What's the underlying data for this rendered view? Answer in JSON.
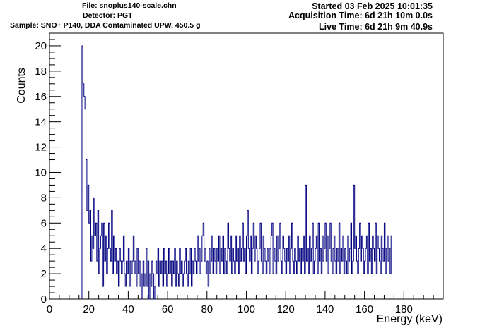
{
  "header": {
    "file": "File: snoplus140-scale.chn",
    "detector": "Detector: PGT",
    "sample": "Sample: SNO+ P140, DDA Contaminated UPW, 450.5 g",
    "started": "Started 03 Feb 2025 10:01:35",
    "acquisition_time": "Acquisition Time: 6d 21h 10m 0.0s",
    "live_time": "Live Time: 6d 21h 9m 40.9s"
  },
  "chart_data": {
    "type": "histogram",
    "xlabel": "Energy (keV)",
    "ylabel": "Counts",
    "xlim": [
      0,
      200
    ],
    "ylim": [
      0,
      21
    ],
    "x_ticks": [
      0,
      20,
      40,
      60,
      80,
      100,
      120,
      140,
      160,
      180
    ],
    "y_ticks": [
      0,
      2,
      4,
      6,
      8,
      10,
      12,
      14,
      16,
      18,
      20
    ],
    "line_color": "#00007f",
    "bin_width": 0.5,
    "bins_start": 16.5,
    "counts": [
      20,
      17,
      16,
      15,
      11,
      7,
      9,
      6,
      7,
      3,
      5,
      4,
      8,
      5,
      6,
      3,
      7,
      2,
      4,
      5,
      6,
      1,
      6,
      3,
      5,
      2,
      4,
      6,
      4,
      3,
      7,
      2,
      5,
      3,
      4,
      2,
      3,
      1,
      4,
      3,
      2,
      3,
      5,
      2,
      1,
      3,
      2,
      4,
      1,
      3,
      2,
      3,
      5,
      2,
      3,
      1,
      4,
      2,
      3,
      1,
      2,
      0,
      3,
      1,
      2,
      4,
      1,
      3,
      0,
      2,
      1,
      3,
      2,
      0,
      1,
      3,
      2,
      4,
      1,
      3,
      2,
      3,
      1,
      4,
      2,
      3,
      1,
      2,
      4,
      2,
      3,
      1,
      3,
      2,
      4,
      1,
      3,
      2,
      1,
      4,
      2,
      3,
      1,
      2,
      3,
      4,
      2,
      1,
      3,
      2,
      4,
      1,
      3,
      2,
      4,
      3,
      2,
      5,
      3,
      4,
      2,
      3,
      5,
      6,
      3,
      4,
      2,
      3,
      1,
      4,
      2,
      3,
      5,
      2,
      4,
      3,
      2,
      4,
      3,
      5,
      2,
      4,
      3,
      5,
      2,
      4,
      3,
      2,
      6,
      4,
      3,
      5,
      2,
      4,
      3,
      2,
      5,
      3,
      4,
      2,
      5,
      3,
      4,
      6,
      3,
      4,
      2,
      5,
      7,
      4,
      3,
      5,
      2,
      4,
      6,
      3,
      5,
      4,
      2,
      3,
      4,
      6,
      3,
      2,
      5,
      4,
      3,
      2,
      4,
      3,
      2,
      4,
      5,
      6,
      2,
      4,
      3,
      2,
      5,
      3,
      4,
      6,
      3,
      2,
      5,
      4,
      3,
      2,
      4,
      3,
      5,
      2,
      4,
      6,
      3,
      2,
      4,
      3,
      2,
      5,
      3,
      4,
      2,
      4,
      3,
      5,
      2,
      9,
      3,
      4,
      2,
      5,
      3,
      4,
      6,
      2,
      3,
      4,
      5,
      2,
      6,
      3,
      4,
      2,
      5,
      3,
      4,
      6,
      3,
      5,
      2,
      4,
      6,
      3,
      2,
      4,
      5,
      3,
      2,
      4,
      3,
      6,
      2,
      4,
      3,
      5,
      2,
      4,
      3,
      2,
      5,
      3,
      4,
      6,
      2,
      3,
      9,
      4,
      5,
      3,
      2,
      4,
      6,
      3,
      5,
      4,
      2,
      3,
      4,
      5,
      2,
      6,
      3,
      4,
      2,
      5,
      4,
      3,
      6,
      2,
      5,
      4,
      3,
      2,
      5,
      4,
      3,
      6,
      2,
      4,
      5,
      3,
      4,
      2,
      5
    ]
  }
}
